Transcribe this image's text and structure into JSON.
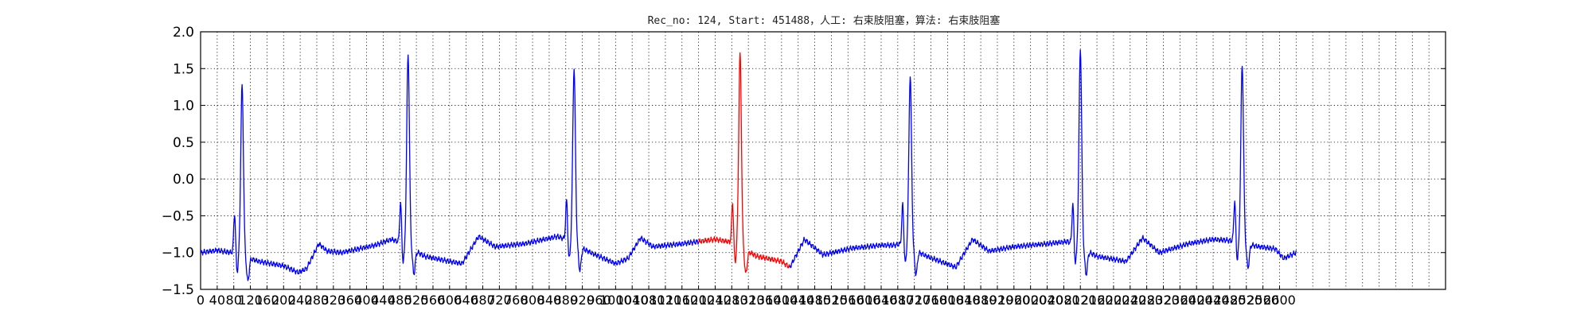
{
  "chart_data": {
    "type": "line",
    "title": "Rec_no: 124, Start: 451488，人工: 右束肢阻塞，算法: 右束肢阻塞",
    "xlabel": "",
    "ylabel": "",
    "xlim": [
      0,
      3000
    ],
    "ylim": [
      -1.5,
      2.0
    ],
    "y_ticks": [
      -1.5,
      -1.0,
      -0.5,
      0.0,
      0.5,
      1.0,
      1.5,
      2.0
    ],
    "x_ticks": [
      0,
      40,
      80,
      120,
      160,
      200,
      240,
      280,
      320,
      360,
      400,
      440,
      480,
      520,
      560,
      600,
      640,
      680,
      720,
      760,
      800,
      840,
      880,
      920,
      960,
      1000,
      1040,
      1080,
      1120,
      1160,
      1200,
      1240,
      1280,
      1320,
      1360,
      1400,
      1440,
      1480,
      1520,
      1560,
      1600,
      1640,
      1680,
      1720,
      1760,
      1800,
      1840,
      1880,
      1920,
      1960,
      2000,
      2040,
      2080,
      2120,
      2160,
      2200,
      2240,
      2280,
      2320,
      2360,
      2400,
      2440,
      2480,
      2520,
      2560,
      2600
    ],
    "x_grid_step": 40,
    "grid": true,
    "grid_style": "dotted",
    "colors": {
      "normal": "#0000ff",
      "highlight": "#ff0000",
      "grid": "#000000"
    },
    "highlight_range": [
      1200,
      1420
    ],
    "beat_peaks_x": [
      100,
      500,
      900,
      1300,
      1710,
      2120,
      2510
    ],
    "beat_peaks_y": [
      1.22,
      1.65,
      1.45,
      1.65,
      1.35,
      1.72,
      1.5
    ],
    "baseline": [
      [
        0,
        -1.0
      ],
      [
        40,
        -0.97
      ],
      [
        75,
        -1.0
      ],
      [
        90,
        -1.02
      ],
      [
        140,
        -1.12
      ],
      [
        200,
        -1.18
      ],
      [
        235,
        -1.27
      ],
      [
        255,
        -1.22
      ],
      [
        285,
        -0.88
      ],
      [
        305,
        -0.98
      ],
      [
        340,
        -1.0
      ],
      [
        420,
        -0.9
      ],
      [
        460,
        -0.82
      ],
      [
        480,
        -0.86
      ],
      [
        540,
        -1.05
      ],
      [
        600,
        -1.12
      ],
      [
        630,
        -1.15
      ],
      [
        670,
        -0.78
      ],
      [
        710,
        -0.92
      ],
      [
        780,
        -0.88
      ],
      [
        860,
        -0.78
      ],
      [
        880,
        -0.82
      ],
      [
        940,
        -1.0
      ],
      [
        1000,
        -1.15
      ],
      [
        1030,
        -1.08
      ],
      [
        1060,
        -0.8
      ],
      [
        1090,
        -0.92
      ],
      [
        1160,
        -0.88
      ],
      [
        1240,
        -0.82
      ],
      [
        1280,
        -0.86
      ],
      [
        1340,
        -1.05
      ],
      [
        1400,
        -1.12
      ],
      [
        1420,
        -1.2
      ],
      [
        1455,
        -0.82
      ],
      [
        1500,
        -1.03
      ],
      [
        1570,
        -0.94
      ],
      [
        1640,
        -0.9
      ],
      [
        1670,
        -0.9
      ],
      [
        1690,
        -0.88
      ],
      [
        1750,
        -1.05
      ],
      [
        1820,
        -1.2
      ],
      [
        1860,
        -0.82
      ],
      [
        1900,
        -0.98
      ],
      [
        1960,
        -0.92
      ],
      [
        2040,
        -0.88
      ],
      [
        2090,
        -0.85
      ],
      [
        2160,
        -1.05
      ],
      [
        2230,
        -1.12
      ],
      [
        2270,
        -0.8
      ],
      [
        2310,
        -1.0
      ],
      [
        2380,
        -0.88
      ],
      [
        2440,
        -0.82
      ],
      [
        2490,
        -0.84
      ],
      [
        2550,
        -0.92
      ],
      [
        2590,
        -0.95
      ],
      [
        2610,
        -1.08
      ],
      [
        2640,
        -1.0
      ]
    ]
  }
}
